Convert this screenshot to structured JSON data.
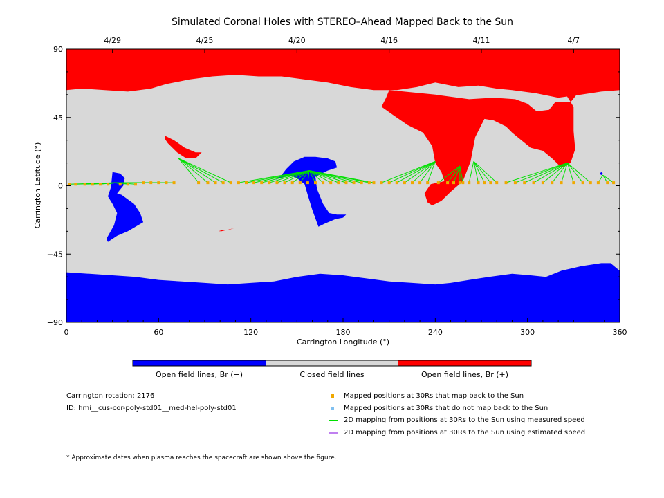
{
  "chart_data": {
    "type": "map",
    "title": "Simulated Coronal Holes with STEREO–Ahead Mapped Back to the Sun",
    "xlabel": "Carrington Longitude (°)",
    "ylabel": "Carrington Latitude (°)",
    "xlim": [
      0,
      360
    ],
    "ylim": [
      -90,
      90
    ],
    "x_ticks": [
      "0",
      "60",
      "120",
      "180",
      "240",
      "300",
      "360"
    ],
    "y_ticks": [
      "90",
      "45",
      "0",
      "−45",
      "−90"
    ],
    "top_date_ticks": [
      {
        "label": "4/29",
        "lon": 30
      },
      {
        "label": "4/25",
        "lon": 90
      },
      {
        "label": "4/20",
        "lon": 150
      },
      {
        "label": "4/16",
        "lon": 210
      },
      {
        "label": "4/11",
        "lon": 270
      },
      {
        "label": "4/7",
        "lon": 330
      }
    ],
    "colorbar": {
      "segments": [
        {
          "label": "Open field lines, Br (−)",
          "color": "#0000ff"
        },
        {
          "label": "Closed field lines",
          "color": "#d8d8d8"
        },
        {
          "label": "Open field lines, Br (+)",
          "color": "#ff0000"
        }
      ]
    },
    "colors": {
      "negative": "#0000ff",
      "closed": "#d8d8d8",
      "positive": "#ff0000",
      "mapped": "#f0a800",
      "unmapped": "#80c0f0",
      "measured": "#00e000",
      "estimated": "#c080f0"
    },
    "footpoints": [
      {
        "lon": 32,
        "lat": 2
      },
      {
        "lon": 73,
        "lat": 18
      },
      {
        "lon": 158,
        "lat": 10
      },
      {
        "lon": 240,
        "lat": 16
      },
      {
        "lon": 256,
        "lat": 13
      },
      {
        "lon": 265,
        "lat": 16
      },
      {
        "lon": 326,
        "lat": 15
      },
      {
        "lon": 349,
        "lat": 7
      }
    ],
    "mapped_points": [
      {
        "lon": 2,
        "lat": 1,
        "to": 0
      },
      {
        "lon": 6,
        "lat": 1,
        "to": 0
      },
      {
        "lon": 12,
        "lat": 1,
        "to": 0
      },
      {
        "lon": 17,
        "lat": 1,
        "to": 0
      },
      {
        "lon": 22,
        "lat": 1,
        "to": 0
      },
      {
        "lon": 27,
        "lat": 1,
        "to": 0
      },
      {
        "lon": 35,
        "lat": 1,
        "to": 0
      },
      {
        "lon": 40,
        "lat": 1,
        "to": 0
      },
      {
        "lon": 45,
        "lat": 1,
        "to": 0
      },
      {
        "lon": 50,
        "lat": 2,
        "to": 0
      },
      {
        "lon": 55,
        "lat": 2,
        "to": 0
      },
      {
        "lon": 60,
        "lat": 2,
        "to": 0
      },
      {
        "lon": 65,
        "lat": 2,
        "to": 0
      },
      {
        "lon": 70,
        "lat": 2,
        "to": 0
      },
      {
        "lon": 86,
        "lat": 2,
        "to": 1
      },
      {
        "lon": 92,
        "lat": 2,
        "to": 1
      },
      {
        "lon": 97,
        "lat": 2,
        "to": 1
      },
      {
        "lon": 102,
        "lat": 2,
        "to": 1
      },
      {
        "lon": 107,
        "lat": 2,
        "to": 1
      },
      {
        "lon": 112,
        "lat": 2,
        "to": 2
      },
      {
        "lon": 117,
        "lat": 2,
        "to": 2
      },
      {
        "lon": 122,
        "lat": 2,
        "to": 2
      },
      {
        "lon": 127,
        "lat": 2,
        "to": 2
      },
      {
        "lon": 132,
        "lat": 2,
        "to": 2
      },
      {
        "lon": 137,
        "lat": 2,
        "to": 2
      },
      {
        "lon": 142,
        "lat": 2,
        "to": 2
      },
      {
        "lon": 147,
        "lat": 2,
        "to": 2
      },
      {
        "lon": 152,
        "lat": 2,
        "to": 2
      },
      {
        "lon": 157,
        "lat": 2,
        "to": 2
      },
      {
        "lon": 162,
        "lat": 2,
        "to": 2
      },
      {
        "lon": 167,
        "lat": 2,
        "to": 2
      },
      {
        "lon": 172,
        "lat": 2,
        "to": 2
      },
      {
        "lon": 177,
        "lat": 2,
        "to": 2
      },
      {
        "lon": 182,
        "lat": 2,
        "to": 2
      },
      {
        "lon": 187,
        "lat": 2,
        "to": 2
      },
      {
        "lon": 192,
        "lat": 2,
        "to": 2
      },
      {
        "lon": 197,
        "lat": 2,
        "to": 2
      },
      {
        "lon": 200,
        "lat": 2,
        "to": 2
      },
      {
        "lon": 205,
        "lat": 2,
        "to": 3
      },
      {
        "lon": 210,
        "lat": 2,
        "to": 3
      },
      {
        "lon": 215,
        "lat": 2,
        "to": 3
      },
      {
        "lon": 220,
        "lat": 2,
        "to": 3
      },
      {
        "lon": 225,
        "lat": 2,
        "to": 3
      },
      {
        "lon": 230,
        "lat": 2,
        "to": 3
      },
      {
        "lon": 235,
        "lat": 2,
        "to": 3
      },
      {
        "lon": 242,
        "lat": 2,
        "to": 4
      },
      {
        "lon": 248,
        "lat": 2,
        "to": 4
      },
      {
        "lon": 252,
        "lat": 2,
        "to": 4
      },
      {
        "lon": 256,
        "lat": 2,
        "to": 4
      },
      {
        "lon": 258,
        "lat": 2,
        "to": 4
      },
      {
        "lon": 262,
        "lat": 2,
        "to": 5
      },
      {
        "lon": 268,
        "lat": 2,
        "to": 5
      },
      {
        "lon": 272,
        "lat": 2,
        "to": 5
      },
      {
        "lon": 276,
        "lat": 2,
        "to": 5
      },
      {
        "lon": 280,
        "lat": 2,
        "to": 5
      },
      {
        "lon": 286,
        "lat": 2,
        "to": 6
      },
      {
        "lon": 292,
        "lat": 2,
        "to": 6
      },
      {
        "lon": 298,
        "lat": 2,
        "to": 6
      },
      {
        "lon": 304,
        "lat": 2,
        "to": 6
      },
      {
        "lon": 310,
        "lat": 2,
        "to": 6
      },
      {
        "lon": 316,
        "lat": 2,
        "to": 6
      },
      {
        "lon": 322,
        "lat": 2,
        "to": 6
      },
      {
        "lon": 330,
        "lat": 2,
        "to": 6
      },
      {
        "lon": 336,
        "lat": 2,
        "to": 6
      },
      {
        "lon": 341,
        "lat": 2,
        "to": 6
      },
      {
        "lon": 346,
        "lat": 2,
        "to": 7
      },
      {
        "lon": 352,
        "lat": 2,
        "to": 7
      },
      {
        "lon": 356,
        "lat": 2,
        "to": 7
      }
    ],
    "regions": [
      {
        "polarity": "+",
        "points": [
          [
            0,
            90
          ],
          [
            360,
            90
          ],
          [
            360,
            63
          ],
          [
            348,
            62
          ],
          [
            335,
            60
          ],
          [
            320,
            58
          ],
          [
            305,
            61
          ],
          [
            290,
            63
          ],
          [
            280,
            64
          ],
          [
            268,
            66
          ],
          [
            255,
            65
          ],
          [
            240,
            68
          ],
          [
            228,
            65
          ],
          [
            215,
            63
          ],
          [
            200,
            63
          ],
          [
            185,
            65
          ],
          [
            170,
            68
          ],
          [
            155,
            70
          ],
          [
            140,
            72
          ],
          [
            125,
            72
          ],
          [
            110,
            73
          ],
          [
            95,
            72
          ],
          [
            80,
            70
          ],
          [
            65,
            67
          ],
          [
            55,
            64
          ],
          [
            40,
            62
          ],
          [
            25,
            63
          ],
          [
            10,
            64
          ],
          [
            0,
            63
          ]
        ]
      },
      {
        "polarity": "+",
        "points": [
          [
            210,
            63
          ],
          [
            240,
            60
          ],
          [
            262,
            57
          ],
          [
            278,
            58
          ],
          [
            292,
            57
          ],
          [
            300,
            54
          ],
          [
            306,
            49
          ],
          [
            314,
            50
          ],
          [
            318,
            55
          ],
          [
            328,
            55
          ],
          [
            332,
            60
          ],
          [
            325,
            60
          ],
          [
            330,
            52
          ],
          [
            330,
            44
          ],
          [
            330,
            36
          ],
          [
            331,
            24
          ],
          [
            328,
            15
          ],
          [
            322,
            12
          ],
          [
            316,
            18
          ],
          [
            310,
            23
          ],
          [
            302,
            25
          ],
          [
            296,
            30
          ],
          [
            290,
            35
          ],
          [
            286,
            39
          ],
          [
            278,
            43
          ],
          [
            272,
            44
          ],
          [
            266,
            32
          ],
          [
            263,
            16
          ],
          [
            258,
            3
          ],
          [
            250,
            -4
          ],
          [
            244,
            -10
          ],
          [
            238,
            -13
          ],
          [
            235,
            -11
          ],
          [
            233,
            -5
          ],
          [
            237,
            1
          ],
          [
            246,
            3
          ],
          [
            244,
            9
          ],
          [
            240,
            15
          ],
          [
            238,
            26
          ],
          [
            232,
            35
          ],
          [
            222,
            40
          ],
          [
            212,
            47
          ],
          [
            205,
            52
          ],
          [
            208,
            58
          ]
        ]
      },
      {
        "polarity": "+",
        "points": [
          [
            64,
            33
          ],
          [
            70,
            30
          ],
          [
            77,
            25
          ],
          [
            84,
            22
          ],
          [
            88,
            22
          ],
          [
            84,
            18
          ],
          [
            78,
            18
          ],
          [
            72,
            22
          ],
          [
            66,
            28
          ],
          [
            64,
            31
          ]
        ]
      },
      {
        "polarity": "+",
        "points": [
          [
            99,
            -30
          ],
          [
            102,
            -29
          ],
          [
            106,
            -29
          ],
          [
            109,
            -28
          ],
          [
            105,
            -29
          ],
          [
            101,
            -30
          ]
        ]
      },
      {
        "polarity": "+",
        "points": [
          [
            210,
            63
          ],
          [
            218,
            58
          ],
          [
            226,
            53
          ],
          [
            232,
            51
          ],
          [
            234,
            52
          ],
          [
            230,
            55
          ],
          [
            224,
            58
          ]
        ]
      },
      {
        "polarity": "-",
        "points": [
          [
            0,
            -57
          ],
          [
            15,
            -58
          ],
          [
            30,
            -59
          ],
          [
            45,
            -60
          ],
          [
            60,
            -62
          ],
          [
            75,
            -63
          ],
          [
            90,
            -64
          ],
          [
            105,
            -65
          ],
          [
            120,
            -64
          ],
          [
            135,
            -63
          ],
          [
            150,
            -60
          ],
          [
            165,
            -58
          ],
          [
            180,
            -59
          ],
          [
            195,
            -61
          ],
          [
            210,
            -63
          ],
          [
            225,
            -64
          ],
          [
            240,
            -65
          ],
          [
            250,
            -64
          ],
          [
            262,
            -62
          ],
          [
            275,
            -60
          ],
          [
            290,
            -58
          ],
          [
            302,
            -59
          ],
          [
            312,
            -60
          ],
          [
            322,
            -56
          ],
          [
            335,
            -53
          ],
          [
            348,
            -51
          ],
          [
            354,
            -51
          ],
          [
            360,
            -56
          ],
          [
            360,
            -90
          ],
          [
            0,
            -90
          ]
        ]
      },
      {
        "polarity": "-",
        "points": [
          [
            30,
            9
          ],
          [
            35,
            8
          ],
          [
            38,
            5
          ],
          [
            37,
            0
          ],
          [
            33,
            -5
          ],
          [
            36,
            -6
          ],
          [
            40,
            -9
          ],
          [
            44,
            -12
          ],
          [
            48,
            -18
          ],
          [
            50,
            -24
          ],
          [
            45,
            -27
          ],
          [
            40,
            -30
          ],
          [
            33,
            -33
          ],
          [
            27,
            -37
          ],
          [
            26,
            -35
          ],
          [
            31,
            -26
          ],
          [
            33,
            -18
          ],
          [
            30,
            -12
          ],
          [
            27,
            -7
          ],
          [
            29,
            -1
          ]
        ]
      },
      {
        "polarity": "-",
        "points": [
          [
            136,
            4
          ],
          [
            140,
            7
          ],
          [
            143,
            11
          ],
          [
            148,
            16
          ],
          [
            155,
            19
          ],
          [
            162,
            19
          ],
          [
            170,
            18
          ],
          [
            175,
            16
          ],
          [
            176,
            12
          ],
          [
            170,
            10
          ],
          [
            166,
            8
          ],
          [
            162,
            6
          ],
          [
            163,
            -2
          ],
          [
            167,
            -12
          ],
          [
            171,
            -18
          ],
          [
            176,
            -19
          ],
          [
            182,
            -19
          ],
          [
            180,
            -21
          ],
          [
            175,
            -22
          ],
          [
            168,
            -25
          ],
          [
            164,
            -27
          ],
          [
            160,
            -16
          ],
          [
            157,
            -6
          ],
          [
            155,
            1
          ],
          [
            150,
            5
          ],
          [
            145,
            7
          ]
        ]
      },
      {
        "polarity": "-",
        "points": [
          [
            347,
            8
          ],
          [
            348,
            9
          ],
          [
            349,
            8
          ],
          [
            348,
            7
          ]
        ]
      }
    ]
  },
  "info": {
    "rotation": "Carrington rotation: 2176",
    "id": "ID: hmi__cus-cor-poly-std01__med-hel-poly-std01"
  },
  "legend": {
    "mapped": "Mapped positions at 30Rs that map back to the Sun",
    "unmapped": "Mapped positions at 30Rs that do not map back to the Sun",
    "measured": "2D mapping from positions at 30Rs to the Sun using measured speed",
    "estimated": "2D mapping from positions at 30Rs to the Sun using estimated speed"
  },
  "footnote": "* Approximate dates when plasma reaches the spacecraft are shown above the figure."
}
